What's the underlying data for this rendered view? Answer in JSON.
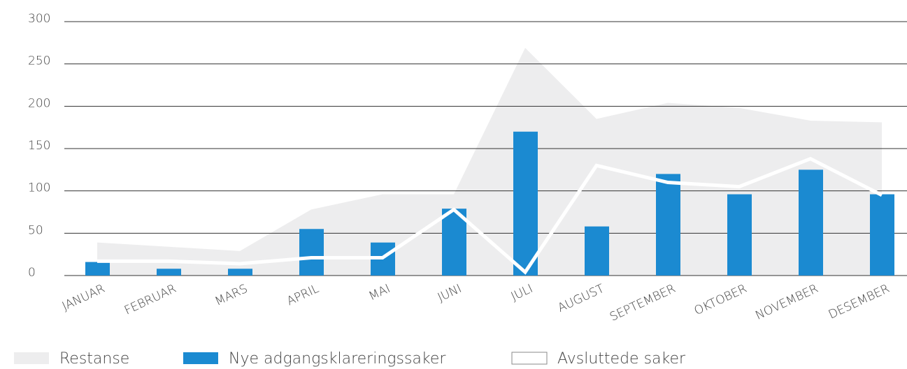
{
  "chart_data": {
    "type": "combo",
    "categories": [
      "JANUAR",
      "FEBRUAR",
      "MARS",
      "APRIL",
      "MAI",
      "JUNI",
      "JULI",
      "AUGUST",
      "SEPTEMBER",
      "OKTOBER",
      "NOVEMBER",
      "DESEMBER"
    ],
    "series": [
      {
        "name": "Restanse",
        "type": "area",
        "color": "#ededee",
        "values": [
          39,
          34,
          29,
          78,
          96,
          96,
          269,
          185,
          204,
          198,
          183,
          181
        ]
      },
      {
        "name": "Nye adgangsklareringssaker",
        "type": "bar",
        "color": "#1b8ad1",
        "values": [
          16,
          8,
          8,
          55,
          39,
          79,
          170,
          58,
          120,
          96,
          125,
          96
        ]
      },
      {
        "name": "Avsluttede saker",
        "type": "line",
        "color": "#ffffff",
        "values": [
          17,
          17,
          14,
          21,
          21,
          78,
          4,
          130,
          110,
          105,
          138,
          95
        ]
      }
    ],
    "ylim": [
      0,
      300
    ],
    "yticks": [
      0,
      50,
      100,
      150,
      200,
      250,
      300
    ],
    "grid": true,
    "legend": "bottom"
  }
}
